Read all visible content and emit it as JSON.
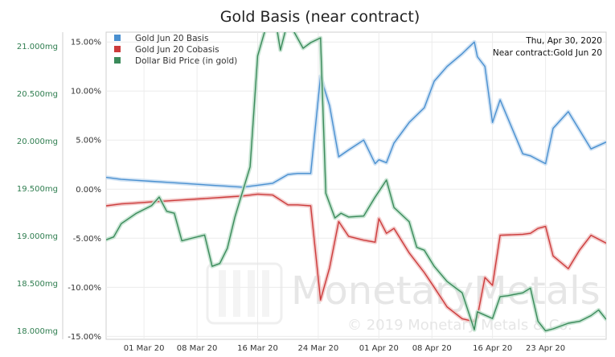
{
  "chart_data": {
    "type": "line",
    "title": "Gold Basis (near contract)",
    "info": {
      "date": "Thu, Apr 30, 2020",
      "near_contract": "Near contract:Gold Jun 20"
    },
    "watermark": {
      "brand": "MonetaryMetals",
      "copyright": "© 2019 Monetary Metals & Co."
    },
    "x_tick_labels": [
      "01 Mar 20",
      "08 Mar 20",
      "16 Mar 20",
      "24 Mar 20",
      "01 Apr 20",
      "08 Apr 20",
      "16 Apr 20",
      "23 Apr 20"
    ],
    "x_tick_days": [
      5,
      12,
      20,
      28,
      36,
      43,
      51,
      58
    ],
    "xlim": [
      0,
      66
    ],
    "y_right": {
      "ticks": [
        "15.00%",
        "10.00%",
        "5.00%",
        "0.00%",
        "-5.00%",
        "-10.00%",
        "-15.00%"
      ],
      "tick_values": [
        15,
        10,
        5,
        0,
        -5,
        -10,
        -15
      ],
      "range": [
        -15.3,
        16.0
      ]
    },
    "y_left": {
      "ticks": [
        "21.000mg",
        "20.500mg",
        "20.000mg",
        "19.500mg",
        "19.000mg",
        "18.500mg",
        "18.000mg"
      ],
      "tick_values": [
        21000,
        20500,
        20000,
        19500,
        19000,
        18500,
        18000
      ],
      "range": [
        17910,
        21150
      ]
    },
    "series": [
      {
        "name": "Gold Jun 20 Basis",
        "color": "#4a90d0",
        "axis": "right",
        "x": [
          0,
          2,
          4,
          6,
          8,
          10,
          12,
          14,
          16,
          18,
          20,
          22,
          24,
          25.3,
          27,
          28.3,
          29.5,
          30.7,
          32,
          34,
          35.5,
          36,
          37,
          38,
          40,
          42,
          43.3,
          45,
          47,
          48.6,
          49,
          50,
          51,
          52,
          55,
          56,
          57,
          58,
          59,
          61,
          62.5,
          64,
          66
        ],
        "values": [
          1.2,
          1.0,
          0.9,
          0.8,
          0.7,
          0.6,
          0.5,
          0.4,
          0.3,
          0.2,
          0.4,
          0.6,
          1.5,
          1.6,
          1.6,
          11.5,
          8.5,
          3.3,
          4.0,
          5.0,
          2.6,
          3.0,
          2.7,
          4.7,
          6.8,
          8.3,
          11.0,
          12.5,
          13.8,
          15.0,
          13.5,
          12.5,
          6.8,
          9.1,
          3.6,
          3.4,
          3.0,
          2.6,
          6.2,
          7.9,
          6.0,
          4.1,
          4.8
        ]
      },
      {
        "name": "Gold Jun 20 Cobasis",
        "color": "#cc3b3b",
        "axis": "right",
        "x": [
          0,
          2,
          4,
          6,
          8,
          10,
          12,
          14,
          16,
          18,
          20,
          22,
          24,
          25.3,
          27,
          28.3,
          29.5,
          30.7,
          32,
          34,
          35.5,
          36,
          37,
          38,
          40,
          42,
          43.3,
          45,
          47,
          48.6,
          49,
          50,
          51,
          52,
          55,
          56,
          57,
          58,
          59,
          61,
          62.5,
          64,
          66
        ],
        "values": [
          -1.7,
          -1.5,
          -1.4,
          -1.3,
          -1.2,
          -1.1,
          -1.0,
          -0.9,
          -0.8,
          -0.7,
          -0.5,
          -0.6,
          -1.6,
          -1.6,
          -1.7,
          -11.3,
          -8.0,
          -3.3,
          -4.8,
          -5.2,
          -5.4,
          -3.0,
          -4.5,
          -4.0,
          -6.5,
          -8.5,
          -10.0,
          -12.0,
          -13.2,
          -13.5,
          -13.0,
          -9.0,
          -9.8,
          -4.7,
          -4.6,
          -4.5,
          -4.0,
          -3.8,
          -6.8,
          -8.1,
          -6.2,
          -4.7,
          -5.5
        ]
      },
      {
        "name": "Dollar Bid Price (in gold)",
        "color": "#3a8a5a",
        "axis": "left",
        "x": [
          0,
          1,
          2,
          4,
          6,
          7,
          8,
          9,
          10,
          11,
          13,
          14,
          15,
          16,
          17,
          19,
          20,
          22,
          23,
          24,
          26,
          27,
          28.3,
          29,
          30.2,
          31,
          32,
          34,
          35.5,
          36,
          37,
          38,
          40,
          41,
          42,
          43.3,
          45,
          47,
          48.6,
          49,
          51,
          52,
          53,
          55,
          56,
          57,
          58,
          59,
          61,
          62.5,
          64,
          65,
          66
        ],
        "values": [
          18960,
          18990,
          19130,
          19240,
          19320,
          19410,
          19260,
          19240,
          18950,
          18970,
          19010,
          18680,
          18710,
          18870,
          19200,
          19730,
          20900,
          21450,
          20960,
          21270,
          20980,
          21040,
          21090,
          19450,
          19190,
          19240,
          19200,
          19210,
          19410,
          19470,
          19590,
          19300,
          19150,
          18880,
          18850,
          18680,
          18520,
          18400,
          18010,
          18200,
          18130,
          18360,
          18370,
          18400,
          18450,
          18100,
          18000,
          18020,
          18080,
          18100,
          18160,
          18220,
          18120
        ]
      }
    ]
  }
}
